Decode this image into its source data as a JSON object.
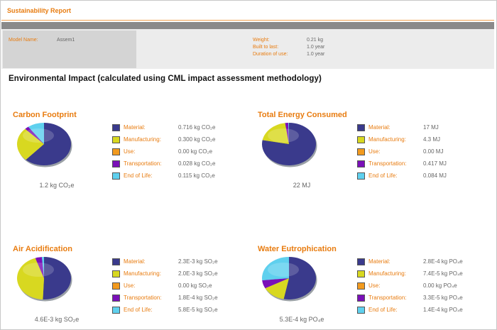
{
  "report": {
    "title": "Sustainability Report"
  },
  "info": {
    "model_name_label": "Model Name:",
    "model_name_value": "Assem1",
    "weight_label": "Weight:",
    "weight_value": "0.21 kg",
    "built_to_last_label": "Built to last:",
    "built_to_last_value": "1.0 year",
    "duration_label": "Duration of use:",
    "duration_value": "1.0 year"
  },
  "heading": "Environmental Impact (calculated using CML impact assessment methodology)",
  "colors": {
    "material": "#3a3a8c",
    "manufacturing": "#d8d820",
    "use": "#f29a1e",
    "transportation": "#7a10b8",
    "end_of_life": "#5fd0ee",
    "accent": "#e87c10"
  },
  "panels": [
    {
      "title": "Carbon Footprint",
      "total": "1.2 kg CO₂e",
      "legend": [
        {
          "label": "Material:",
          "value": "0.716 kg CO₂e"
        },
        {
          "label": "Manufacturing:",
          "value": "0.300 kg CO₂e"
        },
        {
          "label": "Use:",
          "value": "0.00 kg CO₂e"
        },
        {
          "label": "Transportation:",
          "value": "0.028 kg CO₂e"
        },
        {
          "label": "End of Life:",
          "value": "0.115 kg CO₂e"
        }
      ],
      "values": [
        0.716,
        0.3,
        0.0,
        0.028,
        0.115
      ]
    },
    {
      "title": "Total Energy Consumed",
      "total": "22 MJ",
      "legend": [
        {
          "label": "Material:",
          "value": "17 MJ"
        },
        {
          "label": "Manufacturing:",
          "value": "4.3 MJ"
        },
        {
          "label": "Use:",
          "value": "0.00 MJ"
        },
        {
          "label": "Transportation:",
          "value": "0.417 MJ"
        },
        {
          "label": "End of Life:",
          "value": "0.084 MJ"
        }
      ],
      "values": [
        17,
        4.3,
        0.0,
        0.417,
        0.084
      ]
    },
    {
      "title": "Air Acidification",
      "total": "4.6E-3 kg SO₂e",
      "legend": [
        {
          "label": "Material:",
          "value": "2.3E-3 kg SO₂e"
        },
        {
          "label": "Manufacturing:",
          "value": "2.0E-3 kg SO₂e"
        },
        {
          "label": "Use:",
          "value": "0.00 kg SO₂e"
        },
        {
          "label": "Transportation:",
          "value": "1.8E-4 kg SO₂e"
        },
        {
          "label": "End of Life:",
          "value": "5.8E-5 kg SO₂e"
        }
      ],
      "values": [
        0.0023,
        0.002,
        0.0,
        0.00018,
        5.8e-05
      ]
    },
    {
      "title": "Water Eutrophication",
      "total": "5.3E-4 kg PO₄e",
      "legend": [
        {
          "label": "Material:",
          "value": "2.8E-4 kg PO₄e"
        },
        {
          "label": "Manufacturing:",
          "value": "7.4E-5 kg PO₄e"
        },
        {
          "label": "Use:",
          "value": "0.00 kg PO₄e"
        },
        {
          "label": "Transportation:",
          "value": "3.3E-5 kg PO₄e"
        },
        {
          "label": "End of Life:",
          "value": "1.4E-4 kg PO₄e"
        }
      ],
      "values": [
        0.00028,
        7.4e-05,
        0.0,
        3.3e-05,
        0.00014
      ]
    }
  ],
  "chart_data": [
    {
      "type": "pie",
      "title": "Carbon Footprint",
      "categories": [
        "Material",
        "Manufacturing",
        "Use",
        "Transportation",
        "End of Life"
      ],
      "values": [
        0.716,
        0.3,
        0.0,
        0.028,
        0.115
      ],
      "unit": "kg CO₂e"
    },
    {
      "type": "pie",
      "title": "Total Energy Consumed",
      "categories": [
        "Material",
        "Manufacturing",
        "Use",
        "Transportation",
        "End of Life"
      ],
      "values": [
        17,
        4.3,
        0.0,
        0.417,
        0.084
      ],
      "unit": "MJ"
    },
    {
      "type": "pie",
      "title": "Air Acidification",
      "categories": [
        "Material",
        "Manufacturing",
        "Use",
        "Transportation",
        "End of Life"
      ],
      "values": [
        0.0023,
        0.002,
        0.0,
        0.00018,
        5.8e-05
      ],
      "unit": "kg SO₂e"
    },
    {
      "type": "pie",
      "title": "Water Eutrophication",
      "categories": [
        "Material",
        "Manufacturing",
        "Use",
        "Transportation",
        "End of Life"
      ],
      "values": [
        0.00028,
        7.4e-05,
        0.0,
        3.3e-05,
        0.00014
      ],
      "unit": "kg PO₄e"
    }
  ]
}
